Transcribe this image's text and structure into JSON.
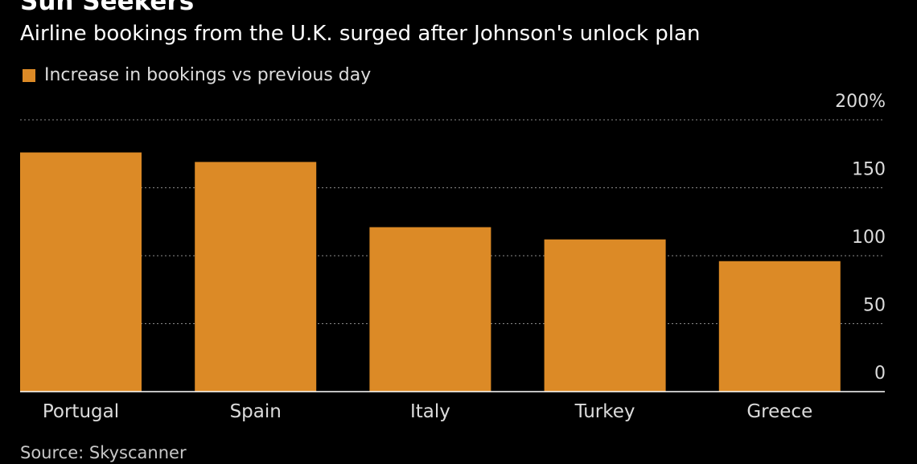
{
  "header": {
    "title": "Sun Seekers",
    "subtitle": "Airline bookings from the U.K. surged after Johnson's unlock plan"
  },
  "footer": {
    "source": "Source: Skyscanner"
  },
  "colors": {
    "background": "#000000",
    "bar": "#dc8a26",
    "grid": "#8a8a8a",
    "text": "#ffffff",
    "muted_text": "#dcdcdc"
  },
  "chart_data": {
    "type": "bar",
    "categories": [
      "Portugal",
      "Spain",
      "Italy",
      "Turkey",
      "Greece"
    ],
    "series": [
      {
        "name": "Increase in bookings vs previous day",
        "values": [
          176,
          169,
          121,
          112,
          96
        ]
      }
    ],
    "ylim": [
      0,
      200
    ],
    "y_ticks": [
      0,
      50,
      100,
      150,
      200
    ],
    "y_tick_labels": [
      "0",
      "50",
      "100",
      "150",
      "200%"
    ],
    "y_axis_position": "right",
    "grid": true,
    "legend_position": "top-left",
    "xlabel": "",
    "ylabel": ""
  }
}
